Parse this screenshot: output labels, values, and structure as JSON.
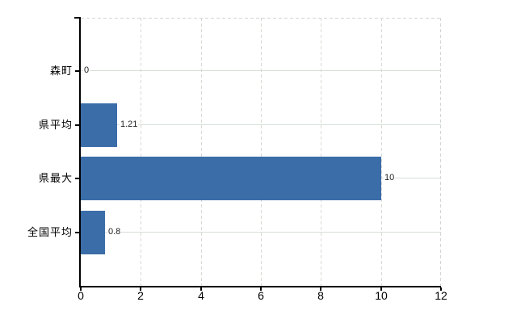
{
  "chart_data": {
    "type": "bar",
    "orientation": "horizontal",
    "title": "",
    "xlabel": "",
    "ylabel": "",
    "categories": [
      "森町",
      "県平均",
      "県最大",
      "全国平均"
    ],
    "values": [
      0,
      1.21,
      10,
      0.8
    ],
    "value_labels": [
      "0",
      "1.21",
      "10",
      "0.8"
    ],
    "xlim": [
      0,
      12
    ],
    "x_ticks": [
      0,
      2,
      4,
      6,
      8,
      10,
      12
    ],
    "x_tick_labels": [
      "0",
      "2",
      "4",
      "6",
      "8",
      "10",
      "12"
    ],
    "legend": "none",
    "grid": true,
    "colors": {
      "bar": "#3b6da8",
      "background": "#ffffff",
      "axis": "#000000",
      "gridline_horizontal": "#d6ded6",
      "gridline_vertical": "#d9d9d3",
      "plot_border_dashed": "#d0d6d0",
      "value_label_text": "#1f1f1f",
      "tick_label_text": "#000000"
    }
  }
}
